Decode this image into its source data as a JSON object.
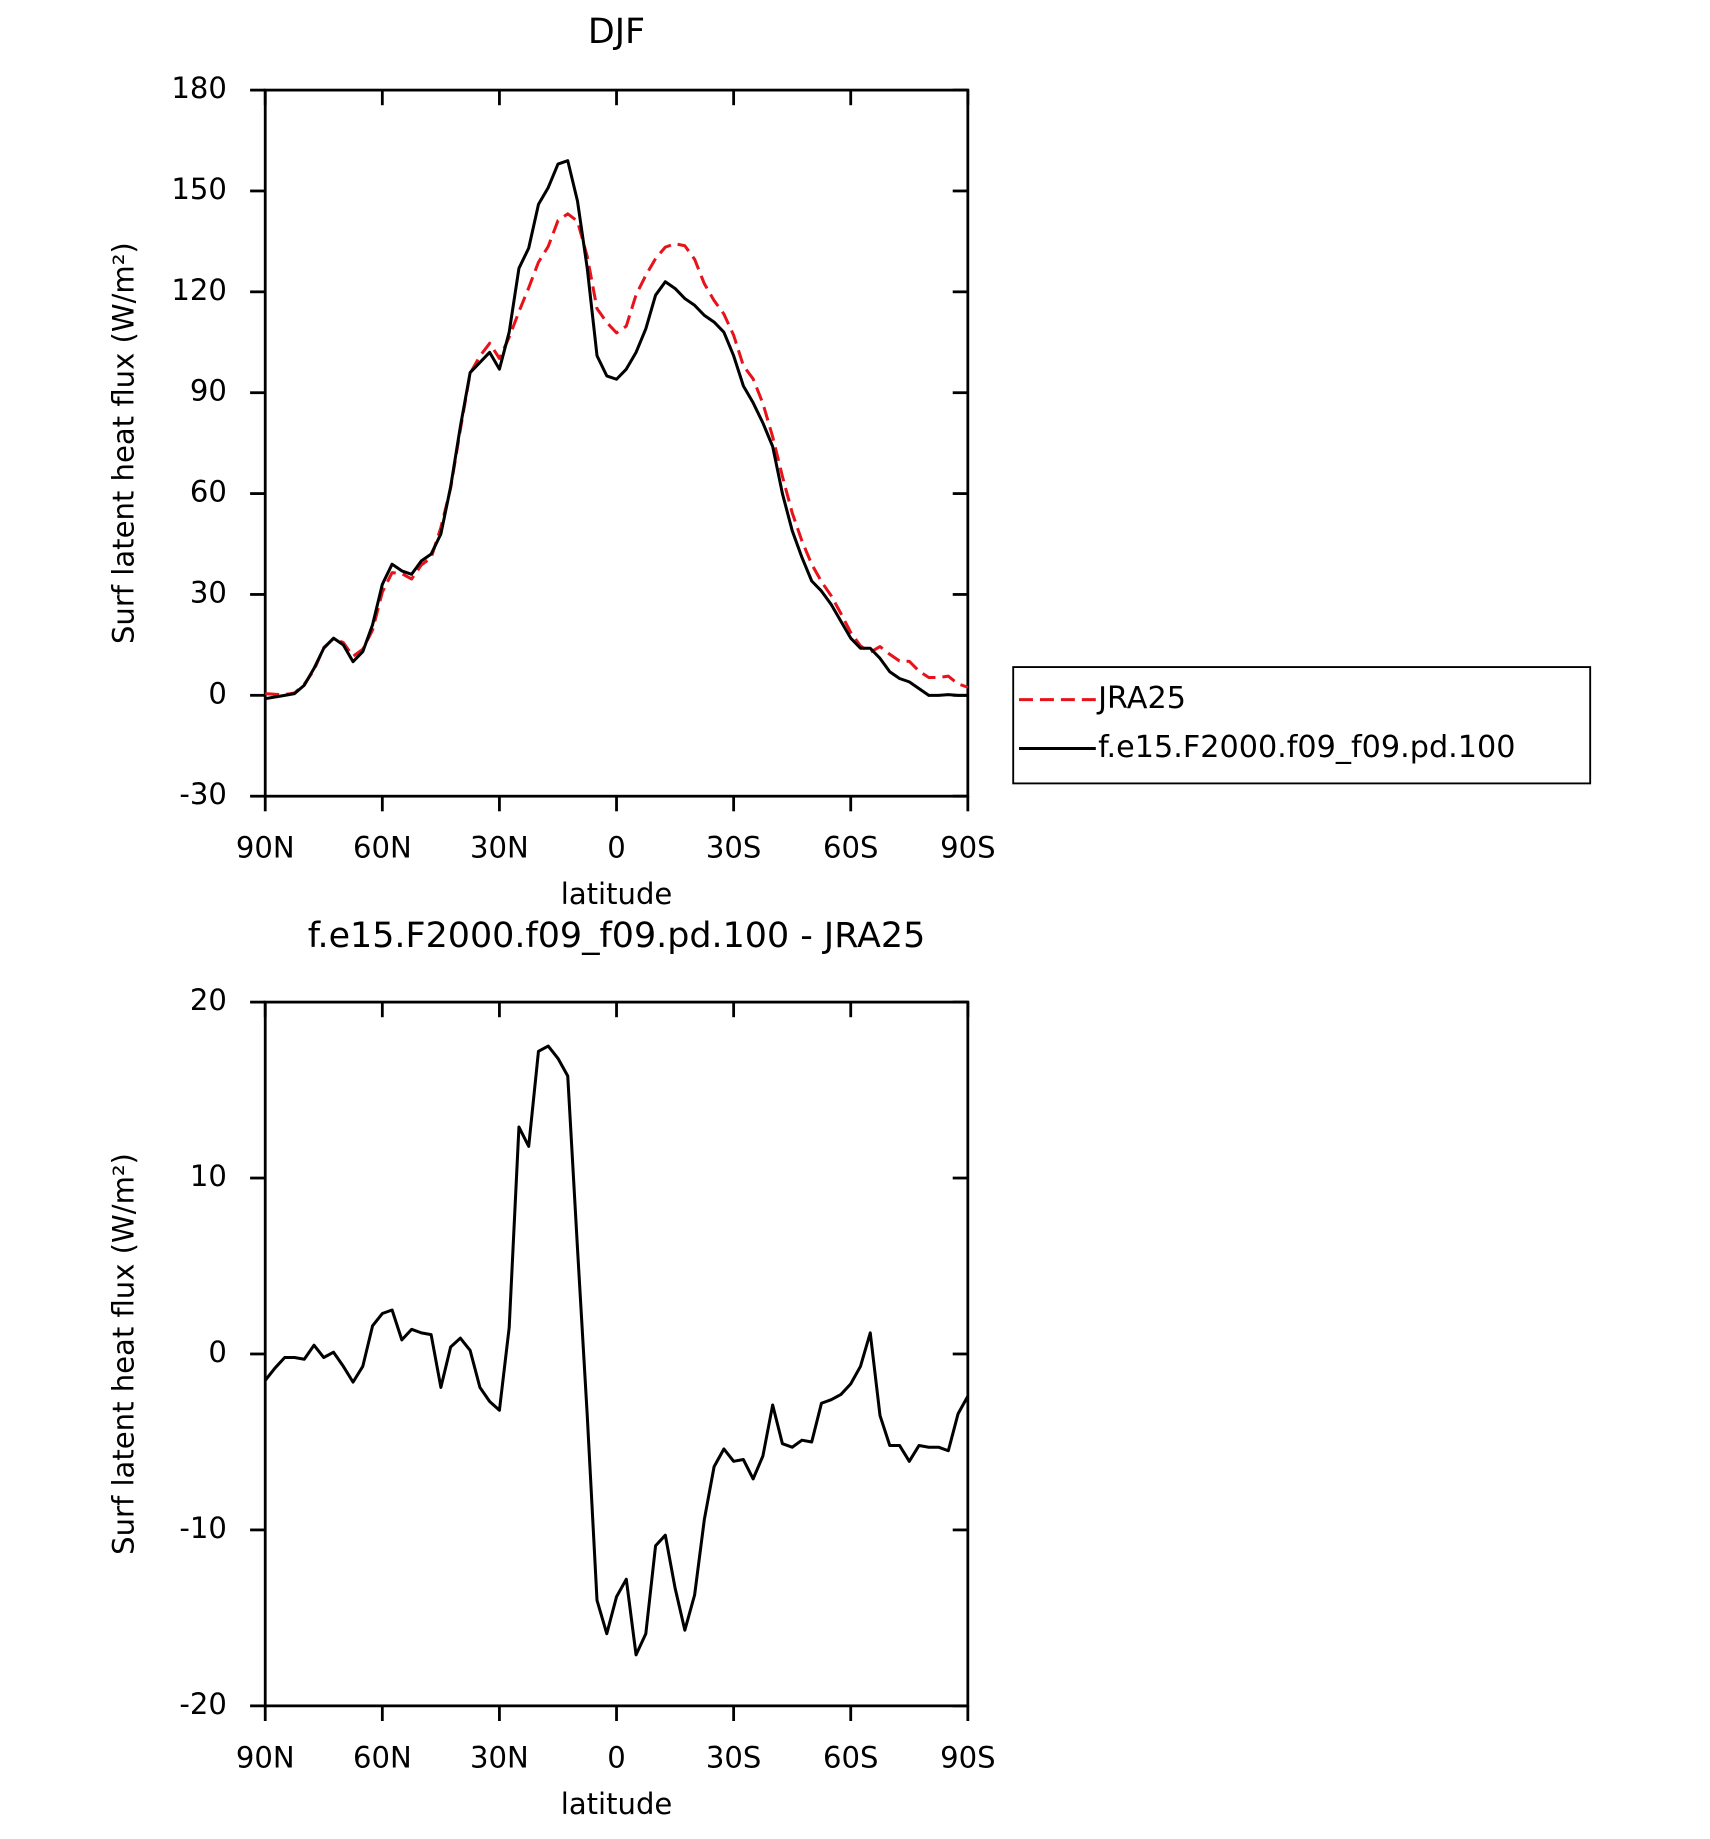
{
  "chart_data": [
    {
      "type": "line",
      "title": "DJF",
      "x_label": "latitude",
      "y_label": "Surf latent heat flux (W/m²)",
      "x": [
        90,
        87.5,
        85,
        82.5,
        80,
        77.5,
        75,
        72.5,
        70,
        67.5,
        65,
        62.5,
        60,
        57.5,
        55,
        52.5,
        50,
        47.5,
        45,
        42.5,
        40,
        37.5,
        35,
        32.5,
        30,
        27.5,
        25,
        22.5,
        20,
        17.5,
        15,
        12.5,
        10,
        7.5,
        5,
        2.5,
        0,
        -2.5,
        -5,
        -7.5,
        -10,
        -12.5,
        -15,
        -17.5,
        -20,
        -22.5,
        -25,
        -27.5,
        -30,
        -32.5,
        -35,
        -37.5,
        -40,
        -42.5,
        -45,
        -47.5,
        -50,
        -52.5,
        -55,
        -57.5,
        -60,
        -62.5,
        -65,
        -67.5,
        -70,
        -72.5,
        -75,
        -77.5,
        -80,
        -82.5,
        -85,
        -87.5,
        -90
      ],
      "series": [
        {
          "name": "JRA25",
          "color": "#e8131a",
          "linestyle": "dashed",
          "values": [
            0.5,
            0.3,
            0.2,
            0.7,
            3.3,
            7.5,
            14.2,
            16.9,
            15.7,
            11.6,
            13.7,
            19.4,
            30.7,
            36.5,
            36.2,
            34.6,
            38.8,
            40.9,
            49.9,
            61.6,
            79.1,
            95.8,
            100.9,
            104.7,
            100.2,
            106.5,
            114.1,
            121.2,
            128.8,
            133.5,
            141.2,
            143.2,
            141,
            130.5,
            115,
            110.9,
            107.8,
            109.8,
            119.1,
            124.9,
            129.9,
            133.3,
            134.3,
            133.7,
            129.7,
            122.4,
            117.4,
            113.4,
            107.1,
            98,
            94.1,
            86.8,
            76.9,
            65.1,
            54.3,
            45.9,
            39,
            33.8,
            29.6,
            24.3,
            18.7,
            14.7,
            12.8,
            14.5,
            12.2,
            10.2,
            10.1,
            7.2,
            5.3,
            5.3,
            5.7,
            3.4,
            2.4
          ]
        },
        {
          "name": "f.e15.F2000.f09_f09.pd.100",
          "color": "#000000",
          "linestyle": "solid",
          "values": [
            -1,
            -0.5,
            0,
            0.5,
            3,
            8,
            14,
            17,
            15,
            10,
            13,
            21,
            33,
            39,
            37,
            36,
            40,
            42,
            48,
            62,
            80,
            96,
            99,
            102,
            97,
            108,
            127,
            133,
            146,
            151,
            158,
            159,
            147,
            127,
            101,
            95,
            94,
            97,
            102,
            109,
            119,
            123,
            121,
            118,
            116,
            113,
            111,
            108,
            101,
            92,
            87,
            81,
            74,
            60,
            49,
            41,
            34,
            31,
            27,
            22,
            17,
            14,
            14,
            11,
            7,
            5,
            4,
            2,
            0,
            0,
            0.2,
            0,
            0
          ]
        }
      ],
      "xlim": [
        90,
        -90
      ],
      "xticks": [
        {
          "value": 90,
          "label": "90N"
        },
        {
          "value": 60,
          "label": "60N"
        },
        {
          "value": 30,
          "label": "30N"
        },
        0,
        {
          "value": -30,
          "label": "30S"
        },
        {
          "value": -60,
          "label": "60S"
        },
        {
          "value": -90,
          "label": "90S"
        }
      ],
      "ylim": [
        -30,
        180
      ],
      "yticks": [
        -30,
        0,
        30,
        60,
        90,
        120,
        150,
        180
      ],
      "legend": "right"
    },
    {
      "type": "line",
      "title": "f.e15.F2000.f09_f09.pd.100 - JRA25",
      "x_label": "latitude",
      "y_label": "Surf latent heat flux (W/m²)",
      "x": [
        90,
        87.5,
        85,
        82.5,
        80,
        77.5,
        75,
        72.5,
        70,
        67.5,
        65,
        62.5,
        60,
        57.5,
        55,
        52.5,
        50,
        47.5,
        45,
        42.5,
        40,
        37.5,
        35,
        32.5,
        30,
        27.5,
        25,
        22.5,
        20,
        17.5,
        15,
        12.5,
        10,
        7.5,
        5,
        2.5,
        0,
        -2.5,
        -5,
        -7.5,
        -10,
        -12.5,
        -15,
        -17.5,
        -20,
        -22.5,
        -25,
        -27.5,
        -30,
        -32.5,
        -35,
        -37.5,
        -40,
        -42.5,
        -45,
        -47.5,
        -50,
        -52.5,
        -55,
        -57.5,
        -60,
        -62.5,
        -65,
        -67.5,
        -70,
        -72.5,
        -75,
        -77.5,
        -80,
        -82.5,
        -85,
        -87.5,
        -90
      ],
      "color": "#000000",
      "values": [
        -1.5,
        -0.8,
        -0.2,
        -0.2,
        -0.3,
        0.5,
        -0.2,
        0.1,
        -0.7,
        -1.6,
        -0.7,
        1.6,
        2.3,
        2.5,
        0.8,
        1.4,
        1.2,
        1.1,
        -1.9,
        0.4,
        0.9,
        0.2,
        -1.9,
        -2.7,
        -3.2,
        1.5,
        12.9,
        11.8,
        17.2,
        17.5,
        16.8,
        15.8,
        6,
        -3.5,
        -14,
        -15.9,
        -13.8,
        -12.8,
        -17.1,
        -15.9,
        -10.9,
        -10.3,
        -13.3,
        -15.7,
        -13.7,
        -9.4,
        -6.4,
        -5.4,
        -6.1,
        -6,
        -7.1,
        -5.8,
        -2.9,
        -5.1,
        -5.3,
        -4.9,
        -5,
        -2.8,
        -2.6,
        -2.3,
        -1.7,
        -0.7,
        1.2,
        -3.5,
        -5.2,
        -5.2,
        -6.1,
        -5.2,
        -5.3,
        -5.3,
        -5.5,
        -3.4,
        -2.4
      ],
      "xlim": [
        90,
        -90
      ],
      "xticks": [
        {
          "value": 90,
          "label": "90N"
        },
        {
          "value": 60,
          "label": "60N"
        },
        {
          "value": 30,
          "label": "30N"
        },
        0,
        {
          "value": -30,
          "label": "30S"
        },
        {
          "value": -60,
          "label": "60S"
        },
        {
          "value": -90,
          "label": "90S"
        }
      ],
      "ylim": [
        -20,
        20
      ],
      "yticks": [
        -20,
        -10,
        0,
        10,
        20
      ]
    }
  ]
}
